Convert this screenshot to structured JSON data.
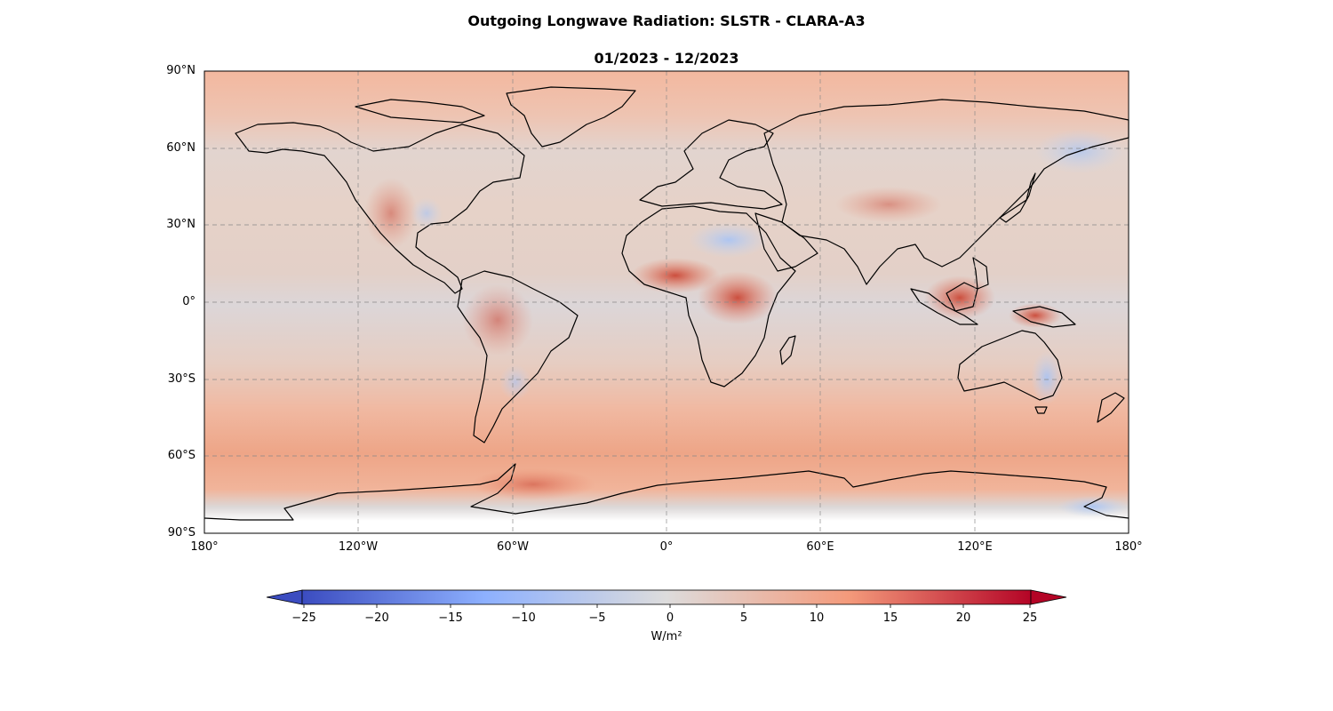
{
  "title": "Outgoing Longwave Radiation: SLSTR - CLARA-A3",
  "subtitle": "01/2023 - 12/2023",
  "map": {
    "projection": "PlateCarree",
    "lon_range": [
      -180,
      180
    ],
    "lat_range": [
      -90,
      90
    ],
    "gridlines": true,
    "lat_ticks": [
      {
        "value": 90,
        "label": "90°N"
      },
      {
        "value": 60,
        "label": "60°N"
      },
      {
        "value": 30,
        "label": "30°N"
      },
      {
        "value": 0,
        "label": "0°"
      },
      {
        "value": -30,
        "label": "30°S"
      },
      {
        "value": -60,
        "label": "60°S"
      },
      {
        "value": -90,
        "label": "90°S"
      }
    ],
    "lon_ticks": [
      {
        "value": -180,
        "label": "180°"
      },
      {
        "value": -120,
        "label": "120°W"
      },
      {
        "value": -60,
        "label": "60°W"
      },
      {
        "value": 0,
        "label": "0°"
      },
      {
        "value": 60,
        "label": "60°E"
      },
      {
        "value": 120,
        "label": "120°E"
      },
      {
        "value": 180,
        "label": "180°"
      }
    ]
  },
  "colorbar": {
    "cmap": "coolwarm",
    "range": [
      -27,
      27
    ],
    "ticks": [
      {
        "value": -25,
        "label": "−25"
      },
      {
        "value": -20,
        "label": "−20"
      },
      {
        "value": -15,
        "label": "−15"
      },
      {
        "value": -10,
        "label": "−10"
      },
      {
        "value": -5,
        "label": "−5"
      },
      {
        "value": 0,
        "label": "0"
      },
      {
        "value": 5,
        "label": "5"
      },
      {
        "value": 10,
        "label": "10"
      },
      {
        "value": 15,
        "label": "15"
      },
      {
        "value": 20,
        "label": "20"
      },
      {
        "value": 25,
        "label": "25"
      }
    ],
    "label": "W/m²",
    "extend": "both",
    "colors": [
      "#3b4cc0",
      "#8db0fe",
      "#dddcdc",
      "#f49a7b",
      "#b40426"
    ]
  }
}
